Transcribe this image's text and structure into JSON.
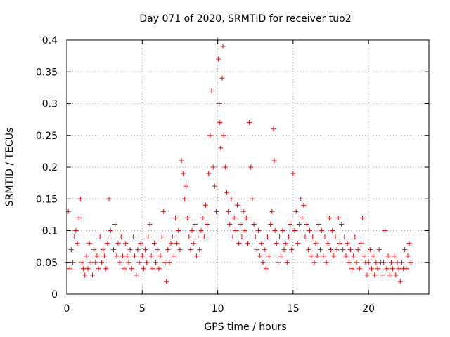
{
  "chart_data": {
    "type": "scatter",
    "title": "Day 071 of 2020, SRMTID for receiver tuo2",
    "xlabel": "GPS time / hours",
    "ylabel": "SRMTID / TECUs",
    "xlim": [
      0,
      24
    ],
    "ylim": [
      0,
      0.4
    ],
    "x_ticks": [
      0,
      5,
      10,
      15,
      20
    ],
    "x_tick_labels": [
      "0",
      "5",
      "10",
      "15",
      "20"
    ],
    "y_ticks": [
      0,
      0.05,
      0.1,
      0.15,
      0.2,
      0.25,
      0.3,
      0.35,
      0.4
    ],
    "y_tick_labels": [
      "0",
      "0.05",
      "0.1",
      "0.15",
      "0.2",
      "0.25",
      "0.3",
      "0.35",
      "0.4"
    ],
    "grid": true,
    "marker": "+",
    "marker_color": "#ff0000",
    "series": [
      {
        "name": "SRMTID",
        "points": [
          [
            0.0,
            0.05
          ],
          [
            0.1,
            0.13
          ],
          [
            0.2,
            0.04
          ],
          [
            0.3,
            0.07
          ],
          [
            0.4,
            0.05
          ],
          [
            0.5,
            0.09
          ],
          [
            0.6,
            0.1
          ],
          [
            0.7,
            0.08
          ],
          [
            0.8,
            0.12
          ],
          [
            0.9,
            0.15
          ],
          [
            1.0,
            0.05
          ],
          [
            1.1,
            0.04
          ],
          [
            1.2,
            0.03
          ],
          [
            1.3,
            0.06
          ],
          [
            1.4,
            0.04
          ],
          [
            1.5,
            0.08
          ],
          [
            1.6,
            0.05
          ],
          [
            1.7,
            0.03
          ],
          [
            1.8,
            0.07
          ],
          [
            1.9,
            0.05
          ],
          [
            2.0,
            0.06
          ],
          [
            2.1,
            0.04
          ],
          [
            2.2,
            0.09
          ],
          [
            2.3,
            0.05
          ],
          [
            2.4,
            0.07
          ],
          [
            2.5,
            0.06
          ],
          [
            2.6,
            0.04
          ],
          [
            2.7,
            0.08
          ],
          [
            2.8,
            0.15
          ],
          [
            2.9,
            0.1
          ],
          [
            3.0,
            0.09
          ],
          [
            3.1,
            0.07
          ],
          [
            3.2,
            0.11
          ],
          [
            3.3,
            0.06
          ],
          [
            3.4,
            0.08
          ],
          [
            3.5,
            0.05
          ],
          [
            3.6,
            0.09
          ],
          [
            3.7,
            0.06
          ],
          [
            3.8,
            0.04
          ],
          [
            3.9,
            0.08
          ],
          [
            4.0,
            0.06
          ],
          [
            4.1,
            0.05
          ],
          [
            4.2,
            0.07
          ],
          [
            4.3,
            0.04
          ],
          [
            4.4,
            0.09
          ],
          [
            4.5,
            0.06
          ],
          [
            4.6,
            0.03
          ],
          [
            4.7,
            0.07
          ],
          [
            4.8,
            0.05
          ],
          [
            4.9,
            0.08
          ],
          [
            5.0,
            0.06
          ],
          [
            5.1,
            0.04
          ],
          [
            5.2,
            0.07
          ],
          [
            5.3,
            0.05
          ],
          [
            5.4,
            0.09
          ],
          [
            5.5,
            0.11
          ],
          [
            5.6,
            0.06
          ],
          [
            5.7,
            0.04
          ],
          [
            5.8,
            0.08
          ],
          [
            5.9,
            0.05
          ],
          [
            6.0,
            0.07
          ],
          [
            6.1,
            0.04
          ],
          [
            6.2,
            0.06
          ],
          [
            6.3,
            0.09
          ],
          [
            6.4,
            0.13
          ],
          [
            6.5,
            0.05
          ],
          [
            6.6,
            0.02
          ],
          [
            6.7,
            0.07
          ],
          [
            6.8,
            0.05
          ],
          [
            6.9,
            0.08
          ],
          [
            7.0,
            0.09
          ],
          [
            7.1,
            0.06
          ],
          [
            7.2,
            0.12
          ],
          [
            7.3,
            0.08
          ],
          [
            7.4,
            0.1
          ],
          [
            7.5,
            0.07
          ],
          [
            7.6,
            0.21
          ],
          [
            7.7,
            0.19
          ],
          [
            7.8,
            0.15
          ],
          [
            7.9,
            0.17
          ],
          [
            8.0,
            0.12
          ],
          [
            8.1,
            0.09
          ],
          [
            8.2,
            0.07
          ],
          [
            8.3,
            0.1
          ],
          [
            8.4,
            0.08
          ],
          [
            8.5,
            0.11
          ],
          [
            8.6,
            0.06
          ],
          [
            8.7,
            0.09
          ],
          [
            8.8,
            0.07
          ],
          [
            8.9,
            0.1
          ],
          [
            9.0,
            0.12
          ],
          [
            9.1,
            0.09
          ],
          [
            9.2,
            0.14
          ],
          [
            9.3,
            0.11
          ],
          [
            9.4,
            0.19
          ],
          [
            9.5,
            0.25
          ],
          [
            9.6,
            0.32
          ],
          [
            9.7,
            0.2
          ],
          [
            9.8,
            0.17
          ],
          [
            9.9,
            0.13
          ],
          [
            10.0,
            0.4
          ],
          [
            10.05,
            0.37
          ],
          [
            10.1,
            0.3
          ],
          [
            10.15,
            0.27
          ],
          [
            10.2,
            0.23
          ],
          [
            10.3,
            0.34
          ],
          [
            10.35,
            0.39
          ],
          [
            10.4,
            0.25
          ],
          [
            10.5,
            0.2
          ],
          [
            10.6,
            0.16
          ],
          [
            10.7,
            0.13
          ],
          [
            10.8,
            0.11
          ],
          [
            10.9,
            0.15
          ],
          [
            11.0,
            0.09
          ],
          [
            11.1,
            0.12
          ],
          [
            11.2,
            0.1
          ],
          [
            11.3,
            0.14
          ],
          [
            11.4,
            0.08
          ],
          [
            11.5,
            0.11
          ],
          [
            11.6,
            0.09
          ],
          [
            11.7,
            0.13
          ],
          [
            11.8,
            0.1
          ],
          [
            11.9,
            0.12
          ],
          [
            12.0,
            0.08
          ],
          [
            12.1,
            0.27
          ],
          [
            12.2,
            0.2
          ],
          [
            12.3,
            0.15
          ],
          [
            12.4,
            0.11
          ],
          [
            12.5,
            0.09
          ],
          [
            12.6,
            0.07
          ],
          [
            12.7,
            0.1
          ],
          [
            12.8,
            0.06
          ],
          [
            12.9,
            0.08
          ],
          [
            13.0,
            0.05
          ],
          [
            13.1,
            0.07
          ],
          [
            13.2,
            0.04
          ],
          [
            13.3,
            0.09
          ],
          [
            13.4,
            0.06
          ],
          [
            13.5,
            0.11
          ],
          [
            13.6,
            0.13
          ],
          [
            13.7,
            0.26
          ],
          [
            13.75,
            0.21
          ],
          [
            13.8,
            0.1
          ],
          [
            13.9,
            0.08
          ],
          [
            14.0,
            0.05
          ],
          [
            14.1,
            0.09
          ],
          [
            14.2,
            0.06
          ],
          [
            14.3,
            0.1
          ],
          [
            14.4,
            0.07
          ],
          [
            14.5,
            0.08
          ],
          [
            14.6,
            0.05
          ],
          [
            14.7,
            0.09
          ],
          [
            14.8,
            0.11
          ],
          [
            14.9,
            0.07
          ],
          [
            15.0,
            0.19
          ],
          [
            15.1,
            0.1
          ],
          [
            15.2,
            0.13
          ],
          [
            15.3,
            0.08
          ],
          [
            15.4,
            0.11
          ],
          [
            15.5,
            0.15
          ],
          [
            15.6,
            0.12
          ],
          [
            15.7,
            0.14
          ],
          [
            15.8,
            0.09
          ],
          [
            15.9,
            0.11
          ],
          [
            16.0,
            0.07
          ],
          [
            16.1,
            0.1
          ],
          [
            16.2,
            0.06
          ],
          [
            16.3,
            0.09
          ],
          [
            16.4,
            0.05
          ],
          [
            16.5,
            0.08
          ],
          [
            16.6,
            0.06
          ],
          [
            16.7,
            0.11
          ],
          [
            16.8,
            0.07
          ],
          [
            16.9,
            0.1
          ],
          [
            17.0,
            0.06
          ],
          [
            17.1,
            0.09
          ],
          [
            17.2,
            0.05
          ],
          [
            17.3,
            0.08
          ],
          [
            17.4,
            0.12
          ],
          [
            17.5,
            0.07
          ],
          [
            17.6,
            0.1
          ],
          [
            17.7,
            0.06
          ],
          [
            17.8,
            0.09
          ],
          [
            17.9,
            0.07
          ],
          [
            18.0,
            0.12
          ],
          [
            18.1,
            0.08
          ],
          [
            18.2,
            0.11
          ],
          [
            18.3,
            0.07
          ],
          [
            18.4,
            0.09
          ],
          [
            18.5,
            0.06
          ],
          [
            18.6,
            0.08
          ],
          [
            18.7,
            0.05
          ],
          [
            18.8,
            0.07
          ],
          [
            18.9,
            0.04
          ],
          [
            19.0,
            0.06
          ],
          [
            19.1,
            0.09
          ],
          [
            19.2,
            0.05
          ],
          [
            19.3,
            0.07
          ],
          [
            19.4,
            0.04
          ],
          [
            19.5,
            0.08
          ],
          [
            19.6,
            0.12
          ],
          [
            19.7,
            0.06
          ],
          [
            19.8,
            0.05
          ],
          [
            19.9,
            0.03
          ],
          [
            20.0,
            0.05
          ],
          [
            20.1,
            0.07
          ],
          [
            20.2,
            0.04
          ],
          [
            20.3,
            0.06
          ],
          [
            20.4,
            0.03
          ],
          [
            20.5,
            0.05
          ],
          [
            20.6,
            0.04
          ],
          [
            20.7,
            0.07
          ],
          [
            20.8,
            0.05
          ],
          [
            20.9,
            0.03
          ],
          [
            21.0,
            0.05
          ],
          [
            21.1,
            0.1
          ],
          [
            21.2,
            0.04
          ],
          [
            21.3,
            0.06
          ],
          [
            21.4,
            0.03
          ],
          [
            21.5,
            0.05
          ],
          [
            21.6,
            0.04
          ],
          [
            21.7,
            0.06
          ],
          [
            21.8,
            0.03
          ],
          [
            21.9,
            0.05
          ],
          [
            22.0,
            0.04
          ],
          [
            22.1,
            0.02
          ],
          [
            22.2,
            0.05
          ],
          [
            22.3,
            0.04
          ],
          [
            22.4,
            0.07
          ],
          [
            22.5,
            0.04
          ],
          [
            22.6,
            0.06
          ],
          [
            22.7,
            0.08
          ],
          [
            22.8,
            0.05
          ]
        ]
      }
    ]
  }
}
